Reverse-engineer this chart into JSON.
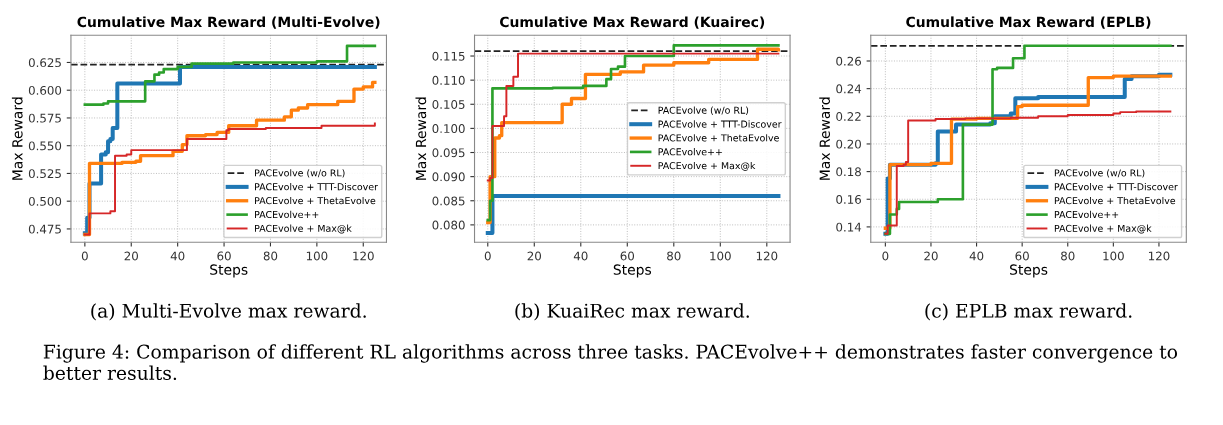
{
  "chart_data": [
    {
      "type": "step",
      "title": "Cumulative Max Reward (Multi-Evolve)",
      "xlabel": "Steps",
      "ylabel": "Max Reward",
      "xlim": [
        -6,
        130
      ],
      "xticks": [
        0,
        20,
        40,
        60,
        80,
        100,
        120
      ],
      "ylim": [
        0.463,
        0.6495
      ],
      "yticks": [
        0.475,
        {
          "value": 0.5,
          "label": "0.500"
        },
        0.525,
        {
          "value": 0.55,
          "label": "0.550"
        },
        0.575,
        {
          "value": 0.6,
          "label": "0.600"
        },
        0.625
      ],
      "grid": true,
      "legend": "bottom right",
      "line_style": "solid",
      "ref_lines": [
        {
          "axis": "y",
          "value": 0.623,
          "label": "PACEvolve (w/o RL)",
          "color": "#222222",
          "line_style": "dashed"
        }
      ],
      "series": [
        {
          "name": "PACEvolve + TTT-Discover",
          "color": "#1f77b4",
          "x": [
            0,
            1,
            2,
            7,
            9,
            10,
            11,
            12,
            14,
            39,
            41,
            125
          ],
          "values": [
            0.471,
            0.485,
            0.516,
            0.542,
            0.544,
            0.554,
            0.556,
            0.566,
            0.606,
            0.606,
            0.621,
            0.621
          ]
        },
        {
          "name": "PACEvolve + ThetaEvolve",
          "color": "#ff7f0e",
          "x": [
            0,
            2,
            16,
            22,
            24,
            38,
            42,
            44,
            52,
            57,
            62,
            74,
            86,
            89,
            92,
            96,
            109,
            116,
            120,
            124,
            125
          ],
          "values": [
            0.47,
            0.534,
            0.535,
            0.536,
            0.541,
            0.545,
            0.551,
            0.559,
            0.56,
            0.562,
            0.568,
            0.573,
            0.576,
            0.582,
            0.584,
            0.587,
            0.59,
            0.601,
            0.603,
            0.607,
            0.607
          ]
        },
        {
          "name": "PACEvolve++",
          "color": "#2ca02c",
          "x": [
            0,
            8,
            10,
            26,
            30,
            32,
            34,
            40,
            46,
            64,
            100,
            113,
            125
          ],
          "values": [
            0.587,
            0.588,
            0.59,
            0.608,
            0.614,
            0.616,
            0.619,
            0.621,
            0.624,
            0.625,
            0.626,
            0.64,
            0.64
          ]
        },
        {
          "name": "PACEvolve + Max@k",
          "color": "#d62728",
          "x": [
            0,
            2,
            11,
            13,
            18,
            20,
            44,
            61,
            62,
            78,
            102,
            124,
            125
          ],
          "values": [
            0.47,
            0.489,
            0.491,
            0.541,
            0.542,
            0.546,
            0.556,
            0.564,
            0.565,
            0.566,
            0.568,
            0.568,
            0.57
          ]
        }
      ],
      "annotations": [
        "(a) Multi-Evolve max reward."
      ]
    },
    {
      "type": "step",
      "title": "Cumulative Max Reward (Kuairec)",
      "xlabel": "Steps",
      "ylabel": "Max Reward",
      "xlim": [
        -5.7,
        130
      ],
      "xticks": [
        0,
        20,
        40,
        60,
        80,
        100,
        120
      ],
      "ylim": [
        0.0764,
        0.1193
      ],
      "yticks": [
        {
          "value": 0.08,
          "label": "0.080"
        },
        0.085,
        {
          "value": 0.09,
          "label": "0.090"
        },
        0.095,
        {
          "value": 0.1,
          "label": "0.100"
        },
        0.105,
        {
          "value": 0.11,
          "label": "0.110"
        },
        0.115
      ],
      "grid": true,
      "legend": "right",
      "line_style": "solid",
      "ref_lines": [
        {
          "axis": "y",
          "value": 0.116,
          "label": "PACEvolve (w/o RL)",
          "color": "#222222",
          "line_style": "dashed"
        }
      ],
      "series": [
        {
          "name": "PACEvolve + TTT-Discover",
          "color": "#1f77b4",
          "x": [
            0,
            2,
            125
          ],
          "values": [
            0.0783,
            0.086,
            0.086
          ]
        },
        {
          "name": "PACEvolve + ThetaEvolve",
          "color": "#ff7f0e",
          "x": [
            0,
            1,
            3,
            5,
            6,
            32,
            36,
            42,
            57,
            67,
            80,
            95,
            116,
            125
          ],
          "values": [
            0.0805,
            0.09,
            0.098,
            0.0985,
            0.1012,
            0.105,
            0.1062,
            0.1112,
            0.1117,
            0.1131,
            0.1136,
            0.1143,
            0.1164,
            0.1163
          ]
        },
        {
          "name": "PACEvolve++",
          "color": "#2ca02c",
          "x": [
            0,
            1,
            2,
            28,
            41,
            51,
            53,
            56,
            59,
            80,
            125
          ],
          "values": [
            0.081,
            0.085,
            0.1083,
            0.1084,
            0.1088,
            0.1102,
            0.1123,
            0.1128,
            0.115,
            0.1172,
            0.1172
          ]
        },
        {
          "name": "PACEvolve + Max@k",
          "color": "#d62728",
          "x": [
            0,
            1,
            2,
            7,
            8,
            11,
            13,
            125
          ],
          "values": [
            0.0892,
            0.0897,
            0.1005,
            0.1025,
            0.1088,
            0.1107,
            0.1155,
            0.1155
          ]
        }
      ],
      "annotations": [
        "(b) KuaiRec max reward."
      ]
    },
    {
      "type": "step",
      "title": "Cumulative Max Reward (EPLB)",
      "xlabel": "Steps",
      "ylabel": "Max Reward",
      "xlim": [
        -6.4,
        132
      ],
      "xticks": [
        0,
        20,
        40,
        60,
        80,
        100,
        120
      ],
      "ylim": [
        0.1289,
        0.2786
      ],
      "yticks": [
        0.14,
        0.16,
        0.18,
        {
          "value": 0.2,
          "label": "0.20"
        },
        0.22,
        0.24,
        0.26
      ],
      "grid": true,
      "legend": "bottom right",
      "line_style": "solid",
      "ref_lines": [
        {
          "axis": "y",
          "value": 0.271,
          "label": "PACEvolve (w/o RL)",
          "color": "#222222",
          "line_style": "dashed"
        }
      ],
      "series": [
        {
          "name": "PACEvolve + TTT-Discover",
          "color": "#1f77b4",
          "x": [
            0,
            1,
            2,
            22,
            23,
            31,
            46,
            48,
            55,
            57,
            67,
            105,
            108,
            120,
            125
          ],
          "values": [
            0.135,
            0.175,
            0.185,
            0.186,
            0.209,
            0.214,
            0.215,
            0.22,
            0.222,
            0.233,
            0.234,
            0.247,
            0.249,
            0.25,
            0.25
          ]
        },
        {
          "name": "PACEvolve + ThetaEvolve",
          "color": "#ff7f0e",
          "x": [
            0,
            2,
            20,
            29,
            40,
            58,
            60,
            89,
            100,
            125
          ],
          "values": [
            0.139,
            0.185,
            0.186,
            0.218,
            0.2185,
            0.227,
            0.228,
            0.248,
            0.249,
            0.249
          ]
        },
        {
          "name": "PACEvolve++",
          "color": "#2ca02c",
          "x": [
            0,
            2,
            5,
            6,
            23,
            34,
            47,
            49,
            56,
            61,
            125
          ],
          "values": [
            0.135,
            0.149,
            0.153,
            0.158,
            0.16,
            0.214,
            0.254,
            0.255,
            0.262,
            0.271,
            0.271
          ]
        },
        {
          "name": "PACEvolve + Max@k",
          "color": "#d62728",
          "x": [
            0,
            1,
            5,
            8,
            9,
            10,
            22,
            35,
            55,
            67,
            80,
            100,
            103,
            110,
            125
          ],
          "values": [
            0.135,
            0.141,
            0.184,
            0.185,
            0.187,
            0.217,
            0.218,
            0.2185,
            0.219,
            0.22,
            0.221,
            0.222,
            0.223,
            0.2235,
            0.2235
          ]
        }
      ],
      "annotations": [
        "(c) EPLB max reward.",
        "Figure 4: Comparison of different RL algorithms across three tasks. PACEvolve++ demonstrates faster convergence to better results."
      ]
    }
  ]
}
